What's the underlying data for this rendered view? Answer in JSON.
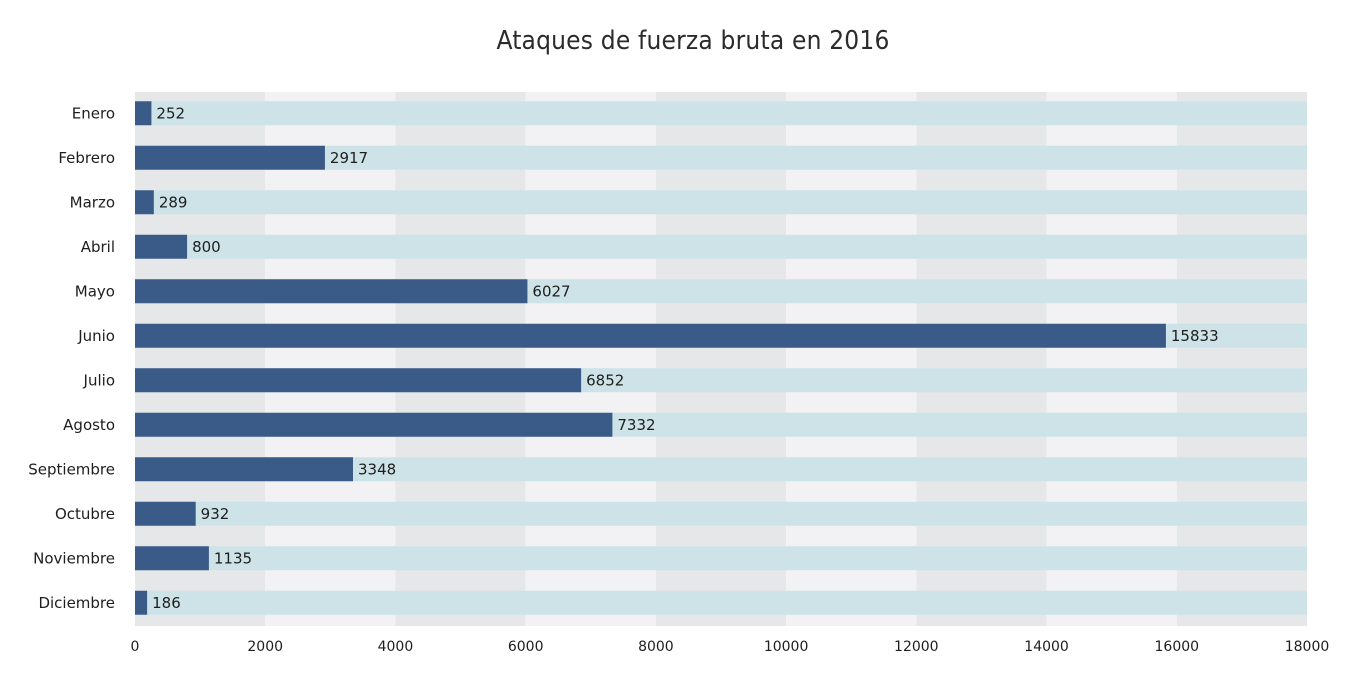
{
  "chart_data": {
    "type": "bar",
    "orientation": "horizontal",
    "title": "Ataques de fuerza bruta en 2016",
    "xlabel": "",
    "ylabel": "",
    "categories": [
      "Enero",
      "Febrero",
      "Marzo",
      "Abril",
      "Mayo",
      "Junio",
      "Julio",
      "Agosto",
      "Septiembre",
      "Octubre",
      "Noviembre",
      "Diciembre"
    ],
    "values": [
      252,
      2917,
      289,
      800,
      6027,
      15833,
      6852,
      7332,
      3348,
      932,
      1135,
      186
    ],
    "xlim": [
      0,
      18000
    ],
    "xticks": [
      "0",
      "2000",
      "4000",
      "6000",
      "8000",
      "10000",
      "12000",
      "14000",
      "16000",
      "18000"
    ],
    "show_data_labels": true,
    "legend": "none",
    "colors": {
      "bar": "#3a5b87",
      "track": "#cde3e8",
      "band_dark": "#e6e7e9",
      "band_light": "#f2f2f4"
    }
  }
}
